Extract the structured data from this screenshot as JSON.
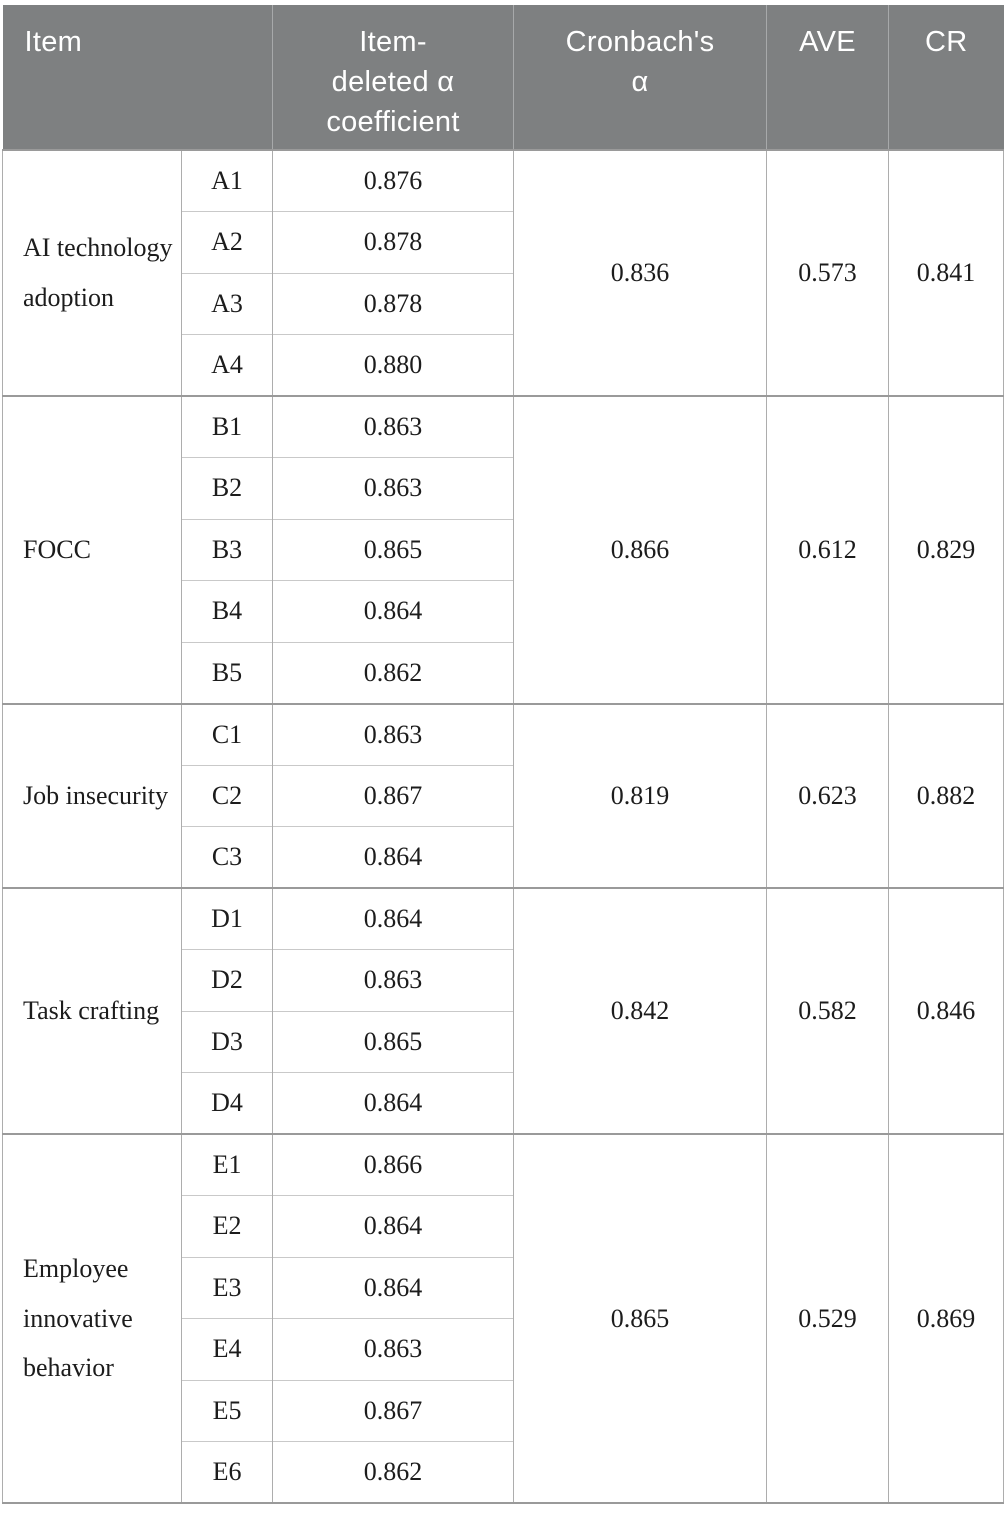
{
  "table": {
    "headers": {
      "item": "Item",
      "item_deleted": "Item-deleted α coefficient",
      "cronbach": "Cronbach's α",
      "ave": "AVE",
      "cr": "CR"
    },
    "groups": [
      {
        "construct": "AI technology adoption",
        "items": [
          {
            "code": "A1",
            "value": "0.876"
          },
          {
            "code": "A2",
            "value": "0.878"
          },
          {
            "code": "A3",
            "value": "0.878"
          },
          {
            "code": "A4",
            "value": "0.880"
          }
        ],
        "cronbach": "0.836",
        "ave": "0.573",
        "cr": "0.841"
      },
      {
        "construct": "FOCC",
        "items": [
          {
            "code": "B1",
            "value": "0.863"
          },
          {
            "code": "B2",
            "value": "0.863"
          },
          {
            "code": "B3",
            "value": "0.865"
          },
          {
            "code": "B4",
            "value": "0.864"
          },
          {
            "code": "B5",
            "value": "0.862"
          }
        ],
        "cronbach": "0.866",
        "ave": "0.612",
        "cr": "0.829"
      },
      {
        "construct": "Job insecurity",
        "items": [
          {
            "code": "C1",
            "value": "0.863"
          },
          {
            "code": "C2",
            "value": "0.867"
          },
          {
            "code": "C3",
            "value": "0.864"
          }
        ],
        "cronbach": "0.819",
        "ave": "0.623",
        "cr": "0.882"
      },
      {
        "construct": "Task crafting",
        "items": [
          {
            "code": "D1",
            "value": "0.864"
          },
          {
            "code": "D2",
            "value": "0.863"
          },
          {
            "code": "D3",
            "value": "0.865"
          },
          {
            "code": "D4",
            "value": "0.864"
          }
        ],
        "cronbach": "0.842",
        "ave": "0.582",
        "cr": "0.846"
      },
      {
        "construct": "Employee innovative behavior",
        "items": [
          {
            "code": "E1",
            "value": "0.866"
          },
          {
            "code": "E2",
            "value": "0.864"
          },
          {
            "code": "E3",
            "value": "0.864"
          },
          {
            "code": "E4",
            "value": "0.863"
          },
          {
            "code": "E5",
            "value": "0.867"
          },
          {
            "code": "E6",
            "value": "0.862"
          }
        ],
        "cronbach": "0.865",
        "ave": "0.529",
        "cr": "0.869"
      }
    ],
    "colors": {
      "header_bg": "#7e8081",
      "header_text": "#ffffff",
      "group_border": "#9a9a9a",
      "inner_border": "#c9c9c9",
      "column_border": "#adadad",
      "body_text": "#1c1c1c"
    }
  }
}
